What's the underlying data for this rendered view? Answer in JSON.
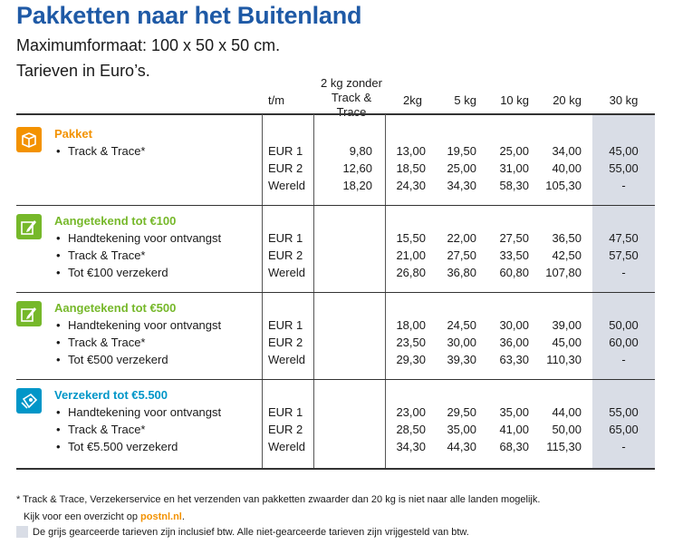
{
  "title": "Pakketten naar het Buitenland",
  "subtitle1": "Maximumformaat: 100 x 50 x 50 cm.",
  "subtitle2": "Tarieven in Euro’s.",
  "headers": {
    "tm": "t/m",
    "col2_line1": "2 kg zonder",
    "col2_line2": "Track & Trace",
    "w2": "2kg",
    "w5": "5 kg",
    "w10": "10 kg",
    "w20": "20 kg",
    "w30": "30 kg"
  },
  "colors": {
    "title": "#1f5aa6",
    "pakket": "#f39200",
    "aangetekend": "#76b82a",
    "verzekerd": "#0096c8",
    "grey_column": "#d9dde6"
  },
  "sections": [
    {
      "icon": "box-icon",
      "title": "Pakket",
      "bullets": [
        "Track & Trace*"
      ],
      "rows": [
        {
          "dest": "EUR 1",
          "c2": "9,80",
          "w2": "13,00",
          "w5": "19,50",
          "w10": "25,00",
          "w20": "34,00",
          "w30": "45,00"
        },
        {
          "dest": "EUR 2",
          "c2": "12,60",
          "w2": "18,50",
          "w5": "25,00",
          "w10": "31,00",
          "w20": "40,00",
          "w30": "55,00"
        },
        {
          "dest": "Wereld",
          "c2": "18,20",
          "w2": "24,30",
          "w5": "34,30",
          "w10": "58,30",
          "w20": "105,30",
          "w30": "-"
        }
      ]
    },
    {
      "icon": "pen-icon",
      "title": "Aangetekend tot €100",
      "bullets": [
        "Handtekening voor ontvangst",
        "Track & Trace*",
        "Tot €100 verzekerd"
      ],
      "rows": [
        {
          "dest": "EUR 1",
          "c2": "",
          "w2": "15,50",
          "w5": "22,00",
          "w10": "27,50",
          "w20": "36,50",
          "w30": "47,50"
        },
        {
          "dest": "EUR 2",
          "c2": "",
          "w2": "21,00",
          "w5": "27,50",
          "w10": "33,50",
          "w20": "42,50",
          "w30": "57,50"
        },
        {
          "dest": "Wereld",
          "c2": "",
          "w2": "26,80",
          "w5": "36,80",
          "w10": "60,80",
          "w20": "107,80",
          "w30": "-"
        }
      ]
    },
    {
      "icon": "pen-icon",
      "title": "Aangetekend tot €500",
      "bullets": [
        "Handtekening voor ontvangst",
        "Track & Trace*",
        "Tot €500 verzekerd"
      ],
      "rows": [
        {
          "dest": "EUR 1",
          "c2": "",
          "w2": "18,00",
          "w5": "24,50",
          "w10": "30,00",
          "w20": "39,00",
          "w30": "50,00"
        },
        {
          "dest": "EUR 2",
          "c2": "",
          "w2": "23,50",
          "w5": "30,00",
          "w10": "36,00",
          "w20": "45,00",
          "w30": "60,00"
        },
        {
          "dest": "Wereld",
          "c2": "",
          "w2": "29,30",
          "w5": "39,30",
          "w10": "63,30",
          "w20": "110,30",
          "w30": "-"
        }
      ]
    },
    {
      "icon": "insured-package-icon",
      "title": "Verzekerd tot €5.500",
      "bullets": [
        "Handtekening voor ontvangst",
        "Track & Trace*",
        "Tot €5.500 verzekerd"
      ],
      "rows": [
        {
          "dest": "EUR 1",
          "c2": "",
          "w2": "23,00",
          "w5": "29,50",
          "w10": "35,00",
          "w20": "44,00",
          "w30": "55,00"
        },
        {
          "dest": "EUR 2",
          "c2": "",
          "w2": "28,50",
          "w5": "35,00",
          "w10": "41,00",
          "w20": "50,00",
          "w30": "65,00"
        },
        {
          "dest": "Wereld",
          "c2": "",
          "w2": "34,30",
          "w5": "44,30",
          "w10": "68,30",
          "w20": "115,30",
          "w30": "-"
        }
      ]
    }
  ],
  "footnote": {
    "line1": "* Track & Trace, Verzekerservice en het verzenden van pakketten zwaarder dan 20 kg is niet naar alle landen mogelijk.",
    "line2_prefix": "Kijk voor een overzicht op ",
    "link": "postnl.nl",
    "line2_suffix": ".",
    "line3": "De grijs gearceerde tarieven zijn inclusief btw. Alle niet-gearceerde tarieven zijn vrijgesteld van btw."
  }
}
